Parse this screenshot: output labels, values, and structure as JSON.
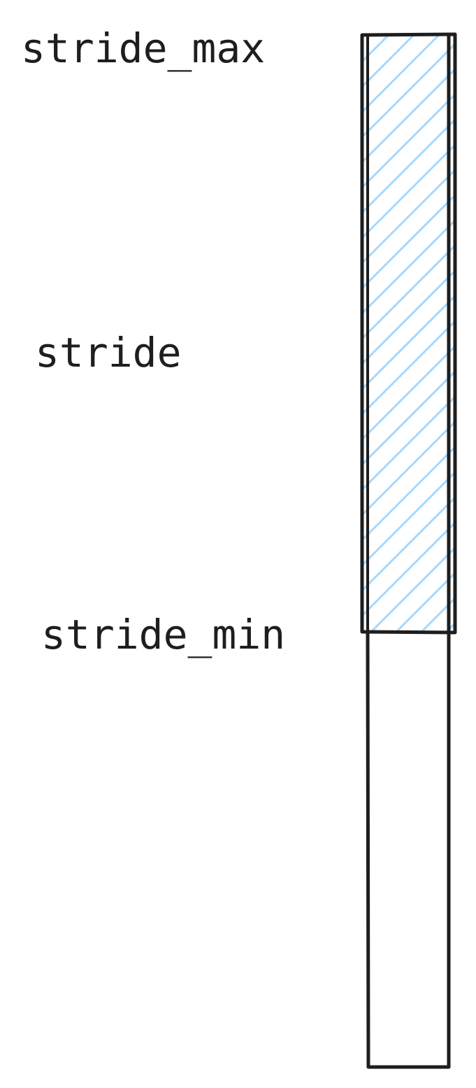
{
  "labels": {
    "stride_max": "stride_max",
    "stride": "stride",
    "stride_min": "stride_min"
  },
  "colors": {
    "stroke": "#1e1e1e",
    "hatch": "#a5d8ff",
    "background": "#ffffff"
  }
}
